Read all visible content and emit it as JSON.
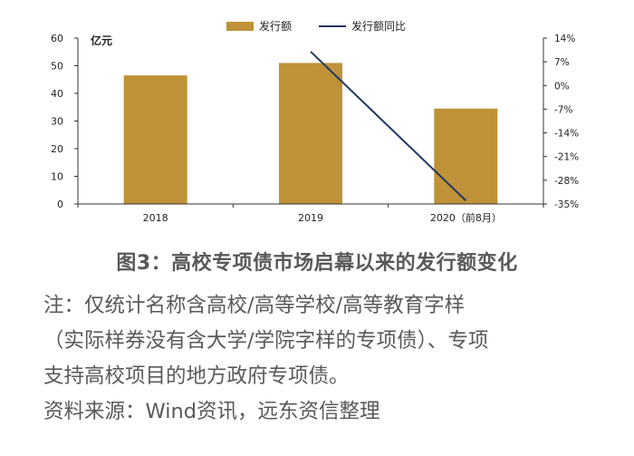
{
  "chart_data": {
    "type": "bar+line",
    "categories": [
      "2018",
      "2019",
      "2020（前8月）"
    ],
    "series": [
      {
        "name": "发行额",
        "type": "bar",
        "axis": "left",
        "color": "#BF9237",
        "values": [
          46.5,
          51,
          34.5
        ]
      },
      {
        "name": "发行额同比",
        "type": "line",
        "axis": "right",
        "color": "#1F3864",
        "values": [
          null,
          10,
          -34
        ]
      }
    ],
    "left_axis": {
      "unit": "亿元",
      "min": 0,
      "max": 60,
      "ticks": [
        "0",
        "10",
        "20",
        "30",
        "40",
        "50",
        "60"
      ]
    },
    "right_axis": {
      "min": -35,
      "max": 14,
      "ticks": [
        "14%",
        "7%",
        "0%",
        "-7%",
        "-14%",
        "-21%",
        "-28%",
        "-35%"
      ]
    },
    "legend_position": "top-center",
    "grid": false
  },
  "figure": {
    "caption": "图3：高校专项债市场启幕以来的发行额变化",
    "note_lines": [
      "注：仅统计名称含高校/高等学校/高等教育字样",
      "（实际样券没有含大学/学院字样的专项债）、专项",
      "支持高校项目的地方政府专项债。",
      "资料来源：Wind资讯，远东资信整理"
    ]
  }
}
